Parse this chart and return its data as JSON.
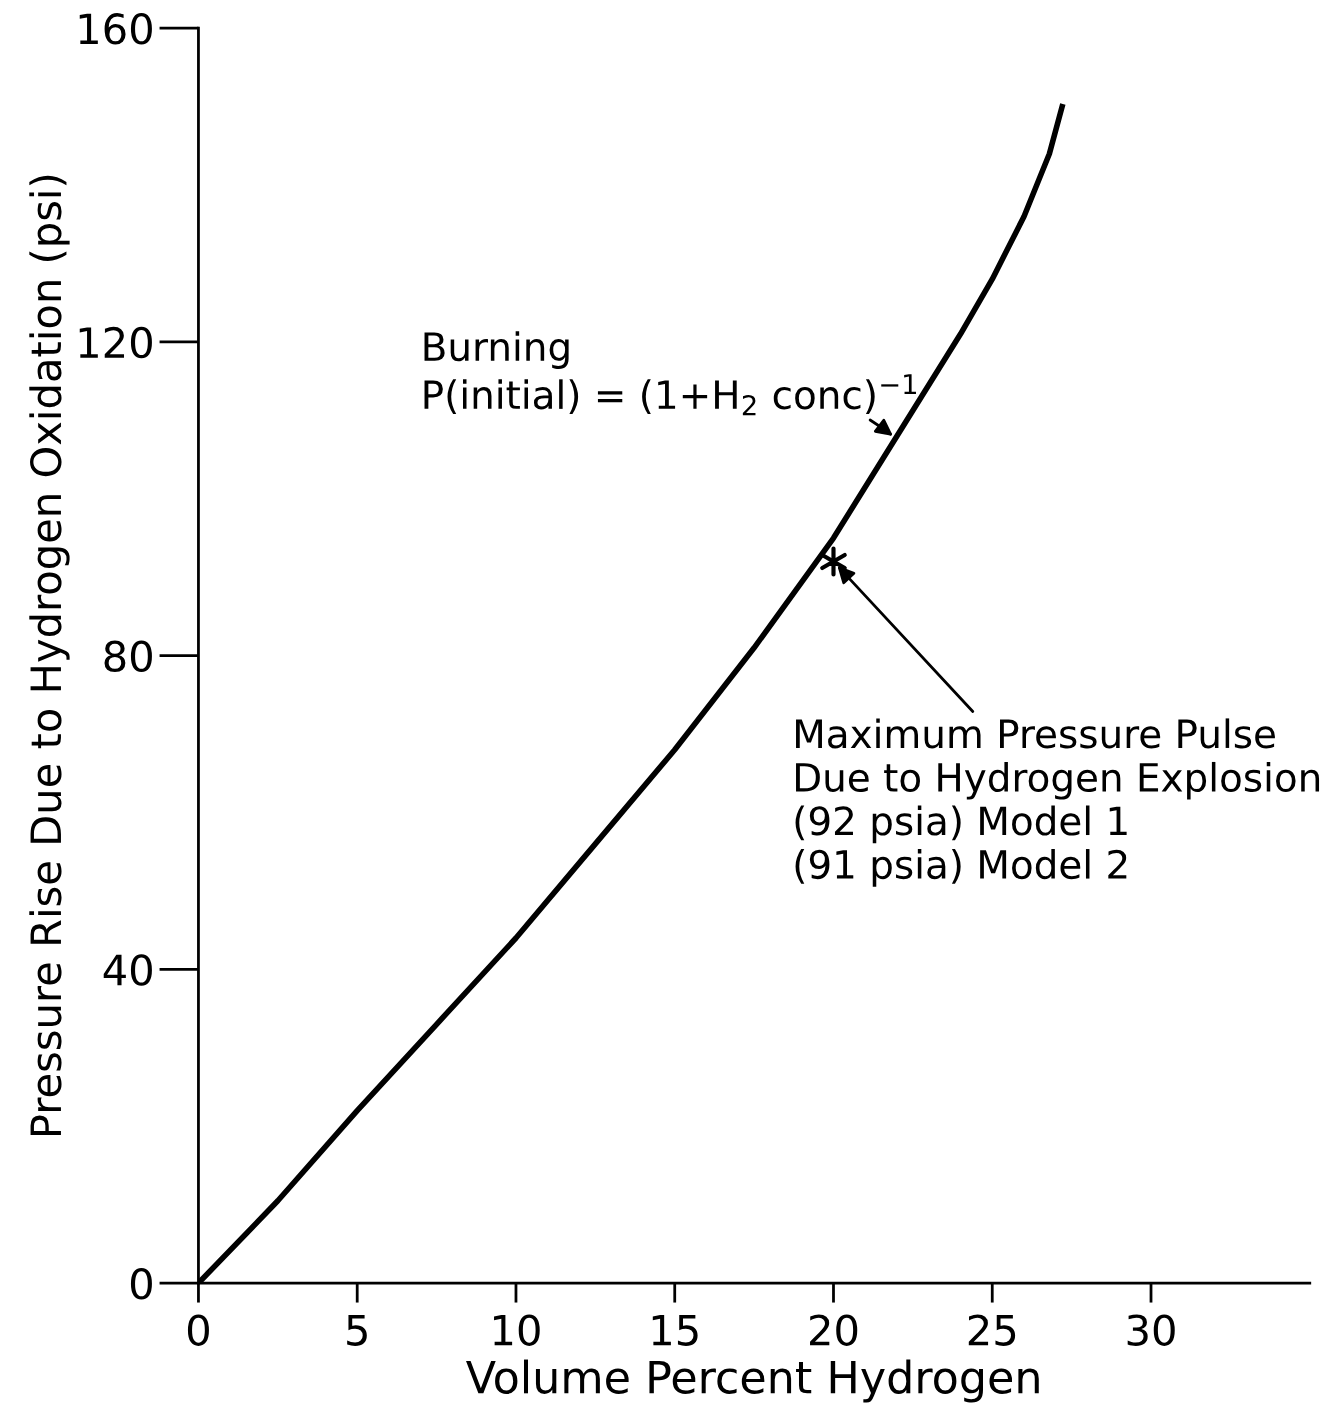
{
  "chart_data": {
    "type": "line",
    "xlabel": "Volume Percent Hydrogen",
    "ylabel": "Pressure Rise Due to Hydrogen Oxidation (psi)",
    "xlim": [
      0,
      35
    ],
    "ylim": [
      0,
      160
    ],
    "xticks": [
      0,
      5,
      10,
      15,
      20,
      25,
      30
    ],
    "yticks": [
      0,
      40,
      80,
      120,
      160
    ],
    "grid": false,
    "legend": false,
    "series": [
      {
        "color": "#000000",
        "marker": "none",
        "line_style": "solid",
        "x": [
          0,
          2.5,
          5,
          7.5,
          10,
          12.5,
          15,
          17.5,
          20,
          22,
          24,
          25,
          26,
          26.5,
          26.8,
          27.2
        ],
        "values": [
          0,
          10.5,
          22,
          33,
          44,
          56,
          68,
          81,
          95,
          108,
          121,
          128,
          136,
          141,
          144,
          150
        ]
      },
      {
        "type": "scatter",
        "color": "#000000",
        "marker": "cross",
        "x": [
          20
        ],
        "values": [
          92
        ]
      }
    ],
    "annotations": [
      "Burning\nP(initial) = (1+H$_{2}$ conc)$^{−1}$",
      {
        "text": "Maximum Pressure Pulse\nDue to Hydrogen Explosion\n(92 psia) Model 1\n(91 psia) Model 2",
        "x": 20,
        "y": 92
      }
    ]
  }
}
